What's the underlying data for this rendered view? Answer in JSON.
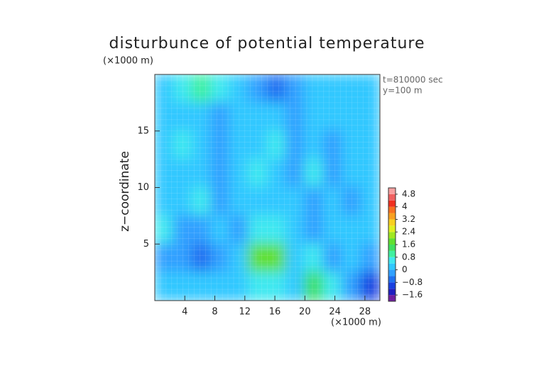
{
  "chart_data": {
    "type": "contour",
    "title": "disturbunce of potential temperature",
    "y_unit": "(×1000 m)",
    "x_unit": "(×1000 m)",
    "ylabel": "z−coordinate",
    "annotations": [
      "t=810000 sec",
      "y=100 m"
    ],
    "xlim": [
      0,
      30
    ],
    "ylim": [
      0,
      20
    ],
    "xticks": [
      4,
      8,
      12,
      16,
      20,
      24,
      28
    ],
    "yticks": [
      5,
      10,
      15
    ],
    "z": [
      [
        0.2,
        0.4,
        1.0,
        0.6,
        0.2,
        -0.4,
        -0.8,
        -0.4,
        0.2,
        0.2,
        0.2,
        0.0
      ],
      [
        0.2,
        0.2,
        0.0,
        -0.4,
        0.2,
        0.2,
        0.2,
        -0.4,
        0.0,
        0.2,
        0.0,
        0.2
      ],
      [
        0.2,
        0.4,
        0.0,
        -0.4,
        0.2,
        0.2,
        0.4,
        -0.4,
        0.2,
        -0.4,
        0.2,
        0.2
      ],
      [
        0.2,
        0.2,
        0.2,
        -0.4,
        0.2,
        0.4,
        0.2,
        -0.4,
        0.4,
        -0.2,
        0.2,
        0.2
      ],
      [
        0.0,
        0.2,
        0.4,
        -0.2,
        0.2,
        0.2,
        0.2,
        0.0,
        -0.4,
        0.2,
        -0.2,
        0.2
      ],
      [
        0.4,
        -0.2,
        -0.4,
        0.2,
        -0.2,
        0.6,
        0.6,
        0.2,
        -0.4,
        0.2,
        0.2,
        0.2
      ],
      [
        -0.4,
        -0.4,
        -0.8,
        -0.4,
        0.2,
        1.6,
        1.6,
        0.2,
        0.4,
        -0.4,
        0.2,
        -0.2
      ],
      [
        0.2,
        0.2,
        0.2,
        0.2,
        0.2,
        0.4,
        0.4,
        0.2,
        1.2,
        0.4,
        -0.4,
        -1.0
      ]
    ],
    "colorbar": {
      "levels": [
        -2,
        -1.6,
        -1.2,
        -0.8,
        -0.4,
        0,
        0.4,
        0.8,
        1.2,
        1.6,
        2,
        2.4,
        2.8,
        3.2,
        3.6,
        4,
        4.4,
        4.8,
        5.2
      ],
      "colors": [
        "#7020a0",
        "#2020c0",
        "#1840e0",
        "#2070f0",
        "#30a0ff",
        "#30c8ff",
        "#40e8f0",
        "#40f0a0",
        "#40e060",
        "#60e030",
        "#a0e820",
        "#e0f020",
        "#f8d020",
        "#f8a020",
        "#f87020",
        "#f03020",
        "#f06060",
        "#f8a0a0"
      ],
      "ticks": [
        4.8,
        4,
        3.2,
        2.4,
        1.6,
        0.8,
        0,
        {
          "value": -0.8,
          "label": "−0.8"
        },
        {
          "value": -1.6,
          "label": "−1.6"
        }
      ]
    }
  }
}
